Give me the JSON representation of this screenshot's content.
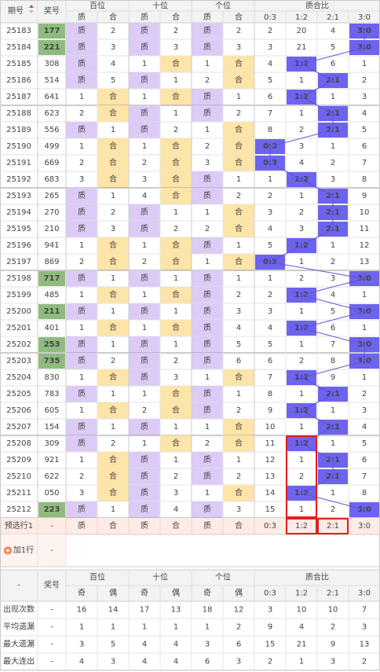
{
  "header": {
    "issue": "期号",
    "number": "奖号",
    "groups": [
      "百位",
      "十位",
      "个位",
      "质合比"
    ],
    "sub": [
      "质",
      "合",
      "质",
      "合",
      "质",
      "合",
      "0:3",
      "1:2",
      "2:1",
      "3:0"
    ]
  },
  "rows": [
    [
      25183,
      "177",
      "质",
      2,
      "质",
      2,
      "质",
      2,
      2,
      20,
      4,
      "3:0"
    ],
    [
      25184,
      "221",
      "质",
      3,
      "质",
      3,
      "质",
      3,
      3,
      21,
      5,
      "3:0"
    ],
    [
      25185,
      "308",
      "质",
      4,
      1,
      "合",
      1,
      "合",
      4,
      "1:2",
      6,
      1
    ],
    [
      25186,
      "514",
      "质",
      5,
      "质",
      1,
      2,
      "合",
      5,
      1,
      "2:1",
      2
    ],
    [
      25187,
      "641",
      1,
      "合",
      1,
      "合",
      "质",
      1,
      6,
      "1:2",
      1,
      3
    ],
    [
      25188,
      "623",
      2,
      "合",
      "质",
      1,
      "质",
      2,
      7,
      1,
      "2:1",
      4
    ],
    [
      25189,
      "556",
      "质",
      1,
      "质",
      2,
      1,
      "合",
      8,
      2,
      "2:1",
      5
    ],
    [
      25190,
      "499",
      1,
      "合",
      1,
      "合",
      2,
      "合",
      "0:3",
      3,
      1,
      6
    ],
    [
      25191,
      "669",
      2,
      "合",
      2,
      "合",
      3,
      "合",
      "0:3",
      4,
      2,
      7
    ],
    [
      25192,
      "683",
      3,
      "合",
      3,
      "合",
      "质",
      1,
      1,
      "1:2",
      3,
      8
    ],
    [
      25193,
      "265",
      "质",
      1,
      4,
      "合",
      "质",
      2,
      2,
      1,
      "2:1",
      9
    ],
    [
      25194,
      "270",
      "质",
      2,
      "质",
      1,
      1,
      "合",
      3,
      2,
      "2:1",
      10
    ],
    [
      25195,
      "210",
      "质",
      3,
      "质",
      2,
      2,
      "合",
      4,
      3,
      "2:1",
      11
    ],
    [
      25196,
      "941",
      1,
      "合",
      1,
      "合",
      "质",
      1,
      5,
      "1:2",
      1,
      12
    ],
    [
      25197,
      "869",
      2,
      "合",
      2,
      "合",
      1,
      "合",
      "0:3",
      1,
      2,
      13
    ],
    [
      25198,
      "717",
      "质",
      1,
      "质",
      1,
      "质",
      1,
      1,
      2,
      3,
      "3:0"
    ],
    [
      25199,
      "485",
      1,
      "合",
      1,
      "合",
      "质",
      2,
      2,
      "1:2",
      4,
      1
    ],
    [
      25200,
      "211",
      "质",
      1,
      "质",
      1,
      "质",
      3,
      3,
      1,
      5,
      "3:0"
    ],
    [
      25201,
      "401",
      1,
      "合",
      1,
      "合",
      "质",
      4,
      4,
      "1:2",
      6,
      1
    ],
    [
      25202,
      "253",
      "质",
      1,
      "质",
      1,
      "质",
      5,
      5,
      1,
      7,
      "3:0"
    ],
    [
      25203,
      "735",
      "质",
      2,
      "质",
      2,
      "质",
      6,
      6,
      2,
      8,
      "3:0"
    ],
    [
      25204,
      "830",
      1,
      "合",
      "质",
      3,
      1,
      "合",
      7,
      "1:2",
      9,
      1
    ],
    [
      25205,
      "783",
      "质",
      1,
      1,
      "合",
      "质",
      1,
      8,
      1,
      "2:1",
      2
    ],
    [
      25206,
      "605",
      1,
      "合",
      2,
      "合",
      "质",
      2,
      9,
      "1:2",
      1,
      3
    ],
    [
      25207,
      "154",
      "质",
      1,
      "质",
      1,
      1,
      "合",
      10,
      1,
      "2:1",
      4
    ],
    [
      25208,
      "309",
      "质",
      2,
      1,
      "合",
      2,
      "合",
      11,
      "1:2",
      1,
      5
    ],
    [
      25209,
      "921",
      1,
      "合",
      "质",
      1,
      "质",
      1,
      12,
      1,
      "2:1",
      6
    ],
    [
      25210,
      "622",
      2,
      "合",
      "质",
      2,
      "质",
      2,
      13,
      2,
      "2:1",
      7
    ],
    [
      25211,
      "050",
      3,
      "合",
      "质",
      3,
      1,
      "合",
      14,
      "1:2",
      1,
      8
    ],
    [
      25212,
      "223",
      "质",
      1,
      "质",
      4,
      "质",
      3,
      15,
      1,
      2,
      "3:0"
    ]
  ],
  "preselect": {
    "label": "预选行1",
    "number": "-",
    "cells": [
      "质",
      "合",
      "质",
      "合",
      "质",
      "合",
      "0:3",
      "1:2",
      "2:1",
      "3:0"
    ]
  },
  "add_row": {
    "label": "加1行",
    "value": "-"
  },
  "footer": {
    "corner": "-",
    "number": "奖号",
    "groups": [
      "百位",
      "十位",
      "个位",
      "质合比"
    ],
    "sub": [
      "奇",
      "偶",
      "奇",
      "偶",
      "奇",
      "偶",
      "0:3",
      "1:2",
      "2:1",
      "3:0"
    ],
    "stats": [
      [
        "出现次数",
        "-",
        16,
        14,
        17,
        13,
        18,
        12,
        3,
        10,
        10,
        7
      ],
      [
        "平均遗漏",
        "-",
        1,
        1,
        1,
        1,
        1,
        2,
        9,
        4,
        2,
        3
      ],
      [
        "最大遗漏",
        "-",
        3,
        5,
        4,
        4,
        3,
        6,
        15,
        21,
        9,
        13
      ],
      [
        "最大连出",
        "-",
        4,
        3,
        4,
        4,
        6,
        3,
        2,
        1,
        3,
        2
      ]
    ]
  }
}
